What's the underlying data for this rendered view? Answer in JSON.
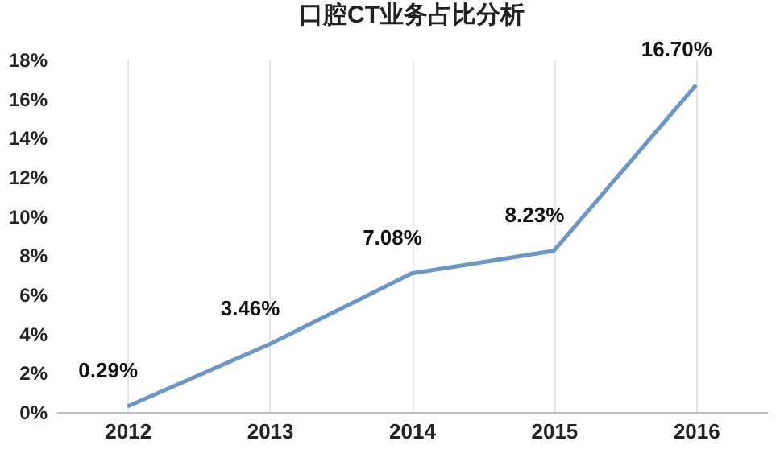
{
  "chart_data": {
    "type": "line",
    "title": "口腔CT业务占比分析",
    "categories": [
      "2012",
      "2013",
      "2014",
      "2015",
      "2016"
    ],
    "series": [
      {
        "color": "#6b97c8",
        "values": [
          0.29,
          3.46,
          7.08,
          8.23,
          16.7
        ],
        "value_labels": [
          "0.29%",
          "3.46%",
          "7.08%",
          "8.23%",
          "16.70%"
        ]
      }
    ],
    "ylim": [
      0,
      18
    ],
    "yticks": [
      {
        "value": 0,
        "label": "0%"
      },
      {
        "value": 2,
        "label": "2%"
      },
      {
        "value": 4,
        "label": "4%"
      },
      {
        "value": 6,
        "label": "6%"
      },
      {
        "value": 8,
        "label": "8%"
      },
      {
        "value": 10,
        "label": "10%"
      },
      {
        "value": 12,
        "label": "12%"
      },
      {
        "value": 14,
        "label": "14%"
      },
      {
        "value": 16,
        "label": "16%"
      },
      {
        "value": 18,
        "label": "18%"
      }
    ],
    "grid": "x",
    "marker": "none",
    "line_style": "solid"
  }
}
